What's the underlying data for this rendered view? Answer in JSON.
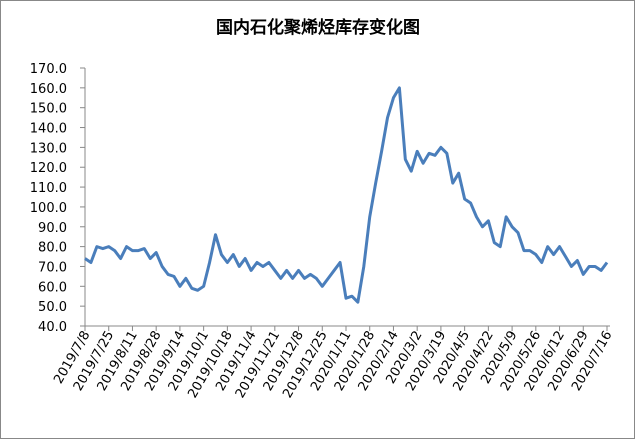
{
  "chart_data": {
    "type": "line",
    "title": "国内石化聚烯烃库存变化图",
    "categories": [
      "2019/7/8",
      null,
      null,
      null,
      "2019/7/25",
      null,
      null,
      null,
      "2019/8/11",
      null,
      null,
      null,
      "2019/8/28",
      null,
      null,
      null,
      "2019/9/14",
      null,
      null,
      null,
      "2019/10/1",
      null,
      null,
      null,
      "2019/10/18",
      null,
      null,
      null,
      "2019/11/4",
      null,
      null,
      null,
      "2019/11/21",
      null,
      null,
      null,
      "2019/12/8",
      null,
      null,
      null,
      "2019/12/25",
      null,
      null,
      null,
      "2020/1/11",
      null,
      null,
      null,
      "2020/1/28",
      null,
      null,
      null,
      "2020/2/14",
      null,
      null,
      null,
      "2020/3/2",
      null,
      null,
      null,
      "2020/3/19",
      null,
      null,
      null,
      "2020/4/5",
      null,
      null,
      null,
      "2020/4/22",
      null,
      null,
      null,
      "2020/5/9",
      null,
      null,
      null,
      "2020/5/26",
      null,
      null,
      null,
      "2020/6/12",
      null,
      null,
      null,
      "2020/6/29",
      null,
      null,
      null,
      "2020/7/16"
    ],
    "series": [
      {
        "color": "#4a7ebb",
        "values": [
          74,
          72,
          80,
          79,
          80,
          78,
          74,
          80,
          78,
          78,
          79,
          74,
          77,
          70,
          66,
          65,
          60,
          64,
          59,
          58,
          60,
          72,
          86,
          76,
          72,
          76,
          70,
          74,
          68,
          72,
          70,
          72,
          68,
          64,
          68,
          64,
          68,
          64,
          66,
          64,
          60,
          64,
          68,
          72,
          54,
          55,
          52,
          70,
          95,
          112,
          128,
          145,
          155,
          160,
          124,
          118,
          128,
          122,
          127,
          126,
          130,
          127,
          112,
          117,
          104,
          102,
          95,
          90,
          93,
          82,
          80,
          95,
          90,
          87,
          78,
          78,
          76,
          72,
          80,
          76,
          80,
          75,
          70,
          73,
          66,
          70,
          70,
          68,
          72
        ]
      }
    ],
    "ylim": [
      40,
      170
    ],
    "yticks": [
      {
        "value": 40,
        "label": "40.0"
      },
      {
        "value": 50,
        "label": "50.0"
      },
      {
        "value": 60,
        "label": "60.0"
      },
      {
        "value": 70,
        "label": "70.0"
      },
      {
        "value": 80,
        "label": "80.0"
      },
      {
        "value": 90,
        "label": "90.0"
      },
      {
        "value": 100,
        "label": "100.0"
      },
      {
        "value": 110,
        "label": "110.0"
      },
      {
        "value": 120,
        "label": "120.0"
      },
      {
        "value": 130,
        "label": "130.0"
      },
      {
        "value": 140,
        "label": "140.0"
      },
      {
        "value": 150,
        "label": "150.0"
      },
      {
        "value": 160,
        "label": "160.0"
      },
      {
        "value": 170,
        "label": "170.0"
      }
    ],
    "grid": false
  }
}
